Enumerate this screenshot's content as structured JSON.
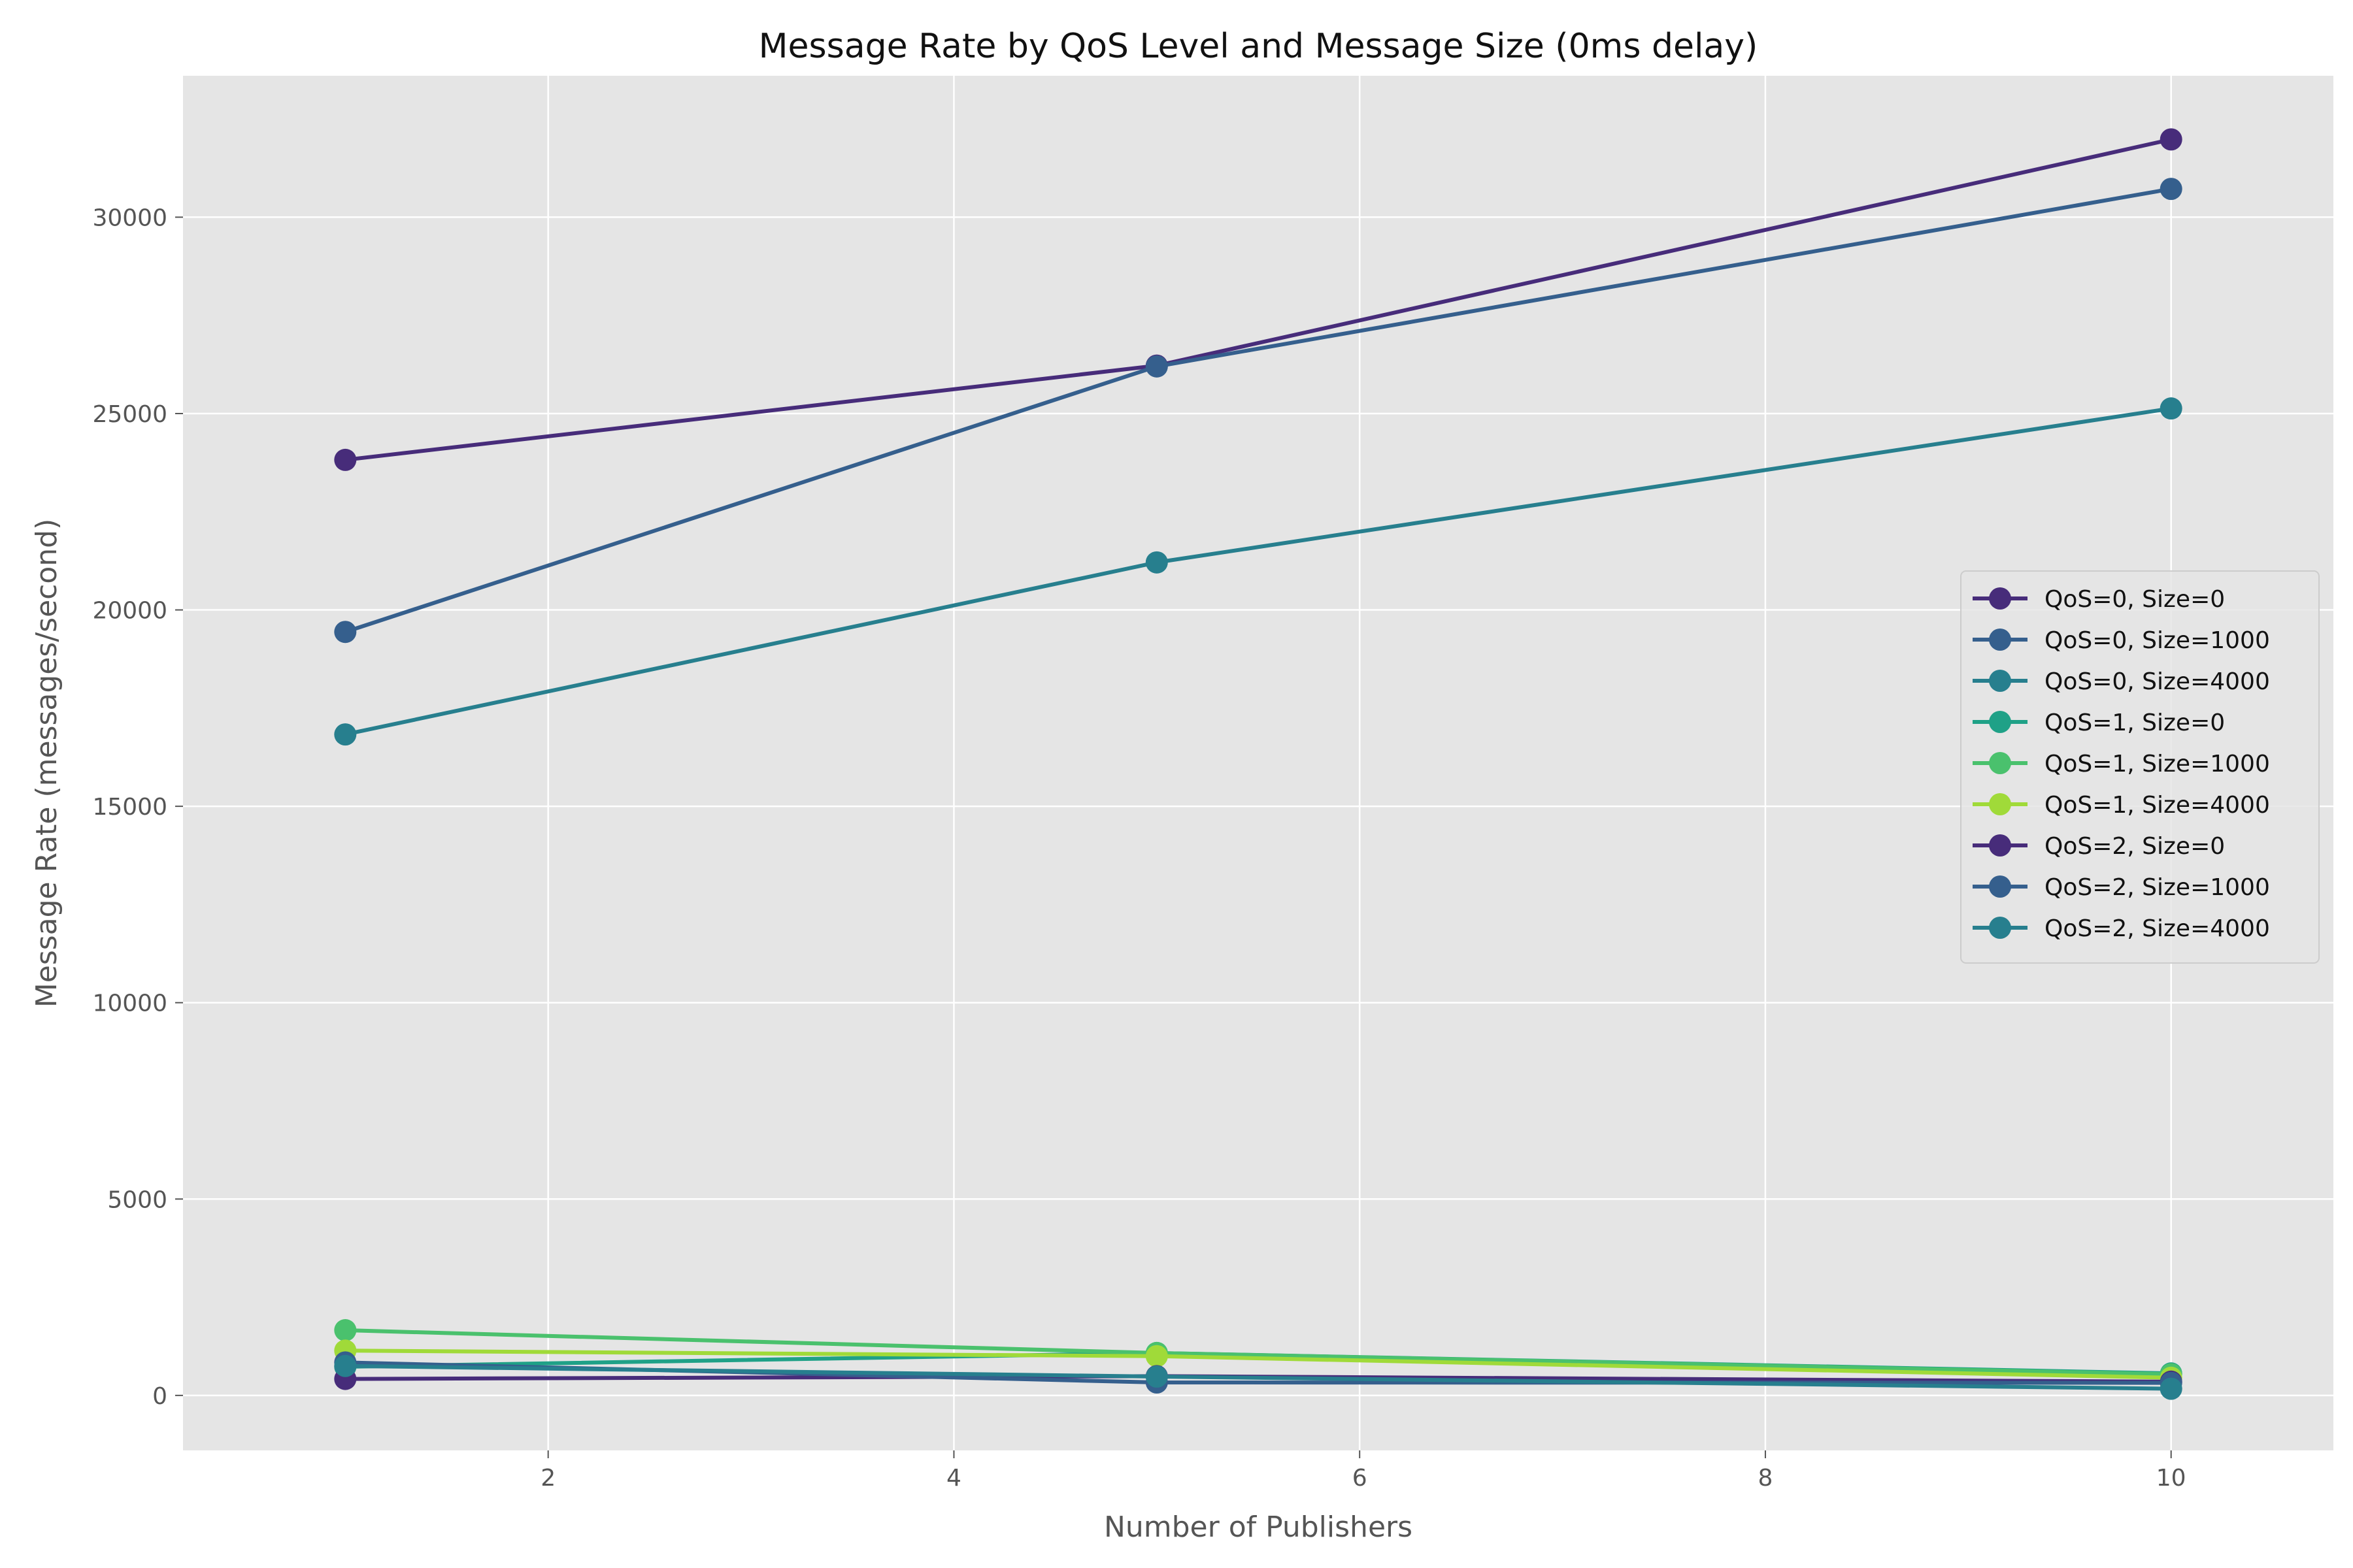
{
  "chart_data": {
    "type": "line",
    "title": "Message Rate by QoS Level and Message Size (0ms delay)",
    "xlabel": "Number of Publishers",
    "ylabel": "Message Rate (messages/second)",
    "xlim": [
      0.2,
      10.8
    ],
    "ylim": [
      -1400,
      33600
    ],
    "xticks": [
      2,
      4,
      6,
      8,
      10
    ],
    "yticks": [
      0,
      5000,
      10000,
      15000,
      20000,
      25000,
      30000
    ],
    "x": [
      1,
      5,
      10
    ],
    "grid": true,
    "legend_position": "center-right",
    "series": [
      {
        "name": "QoS=0, Size=0",
        "color": "#472c7a",
        "values": [
          23820,
          26220,
          31980
        ]
      },
      {
        "name": "QoS=0, Size=1000",
        "color": "#355f8d",
        "values": [
          19440,
          26200,
          30720
        ]
      },
      {
        "name": "QoS=0, Size=4000",
        "color": "#277f8e",
        "values": [
          16830,
          21210,
          25130
        ]
      },
      {
        "name": "QoS=1, Size=0",
        "color": "#1fa187",
        "values": [
          730,
          1080,
          560
        ]
      },
      {
        "name": "QoS=1, Size=1000",
        "color": "#4ac16d",
        "values": [
          1660,
          1080,
          540
        ]
      },
      {
        "name": "QoS=1, Size=4000",
        "color": "#a0da39",
        "values": [
          1140,
          1000,
          450
        ]
      },
      {
        "name": "QoS=2, Size=0",
        "color": "#472c7a",
        "values": [
          420,
          490,
          350
        ]
      },
      {
        "name": "QoS=2, Size=1000",
        "color": "#355f8d",
        "values": [
          840,
          330,
          320
        ]
      },
      {
        "name": "QoS=2, Size=4000",
        "color": "#277f8e",
        "values": [
          750,
          480,
          170
        ]
      }
    ]
  }
}
